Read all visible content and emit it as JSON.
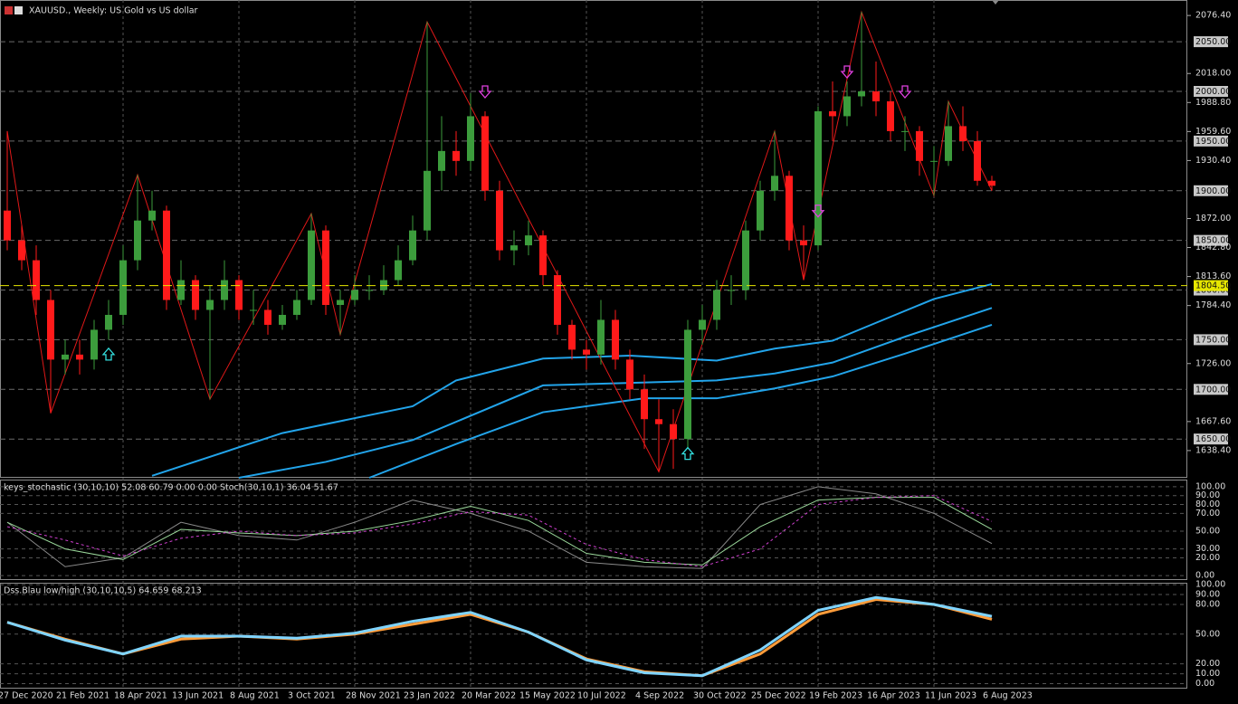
{
  "chart_data": [
    {
      "type": "candlestick",
      "title": "XAUUSD., Weekly:  US Gold vs US dollar",
      "categories": [
        "27 Dec 2020",
        null,
        null,
        null,
        "21 Feb 2021",
        null,
        null,
        null,
        "18 Apr 2021",
        null,
        null,
        null,
        "13 Jun 2021",
        null,
        null,
        null,
        "8 Aug 2021",
        null,
        null,
        null,
        "3 Oct 2021",
        null,
        null,
        null,
        "28 Nov 2021",
        null,
        null,
        null,
        "23 Jan 2022",
        null,
        null,
        null,
        "20 Mar 2022",
        null,
        null,
        null,
        "15 May 2022",
        null,
        null,
        null,
        "10 Jul 2022",
        null,
        null,
        null,
        "4 Sep 2022",
        null,
        null,
        null,
        "30 Oct 2022",
        null,
        null,
        null,
        "25 Dec 2022",
        null,
        null,
        null,
        "19 Feb 2023",
        null,
        null,
        null,
        "16 Apr 2023",
        null,
        null,
        null,
        "11 Jun 2023",
        null,
        null,
        null,
        "6 Aug 2023"
      ],
      "open": [
        1880,
        1850,
        1830,
        1790,
        1730,
        1735,
        1730,
        1760,
        1775,
        1830,
        1870,
        1880,
        1790,
        1810,
        1780,
        1790,
        1810,
        1780,
        1780,
        1765,
        1775,
        1790,
        1860,
        1785,
        1790,
        1800,
        1800,
        1810,
        1830,
        1860,
        1920,
        1940,
        1930,
        1975,
        1900,
        1840,
        1845,
        1855,
        1815,
        1765,
        1740,
        1735,
        1770,
        1730,
        1700,
        1670,
        1665,
        1650,
        1760,
        1770,
        1800,
        1800,
        1860,
        1900,
        1915,
        1850,
        1845,
        1980,
        1975,
        1995,
        2000,
        1990,
        1960,
        1960,
        1930,
        1930,
        1965,
        1950,
        1910
      ],
      "high": [
        1960,
        1865,
        1845,
        1800,
        1750,
        1750,
        1770,
        1790,
        1845,
        1916,
        1900,
        1885,
        1830,
        1815,
        1805,
        1830,
        1815,
        1800,
        1790,
        1785,
        1800,
        1877,
        1865,
        1800,
        1815,
        1815,
        1825,
        1845,
        1875,
        2070,
        1975,
        1960,
        1998,
        1980,
        1910,
        1860,
        1870,
        1860,
        1820,
        1770,
        1750,
        1790,
        1780,
        1740,
        1715,
        1690,
        1680,
        1770,
        1785,
        1810,
        1815,
        1870,
        1910,
        1960,
        1920,
        1865,
        1985,
        2010,
        2010,
        2080,
        2030,
        2000,
        1975,
        1965,
        1945,
        1990,
        1985,
        1960,
        1915
      ],
      "low": [
        1840,
        1820,
        1775,
        1676,
        1715,
        1715,
        1720,
        1750,
        1765,
        1820,
        1860,
        1780,
        1785,
        1770,
        1690,
        1780,
        1770,
        1765,
        1755,
        1760,
        1770,
        1785,
        1775,
        1755,
        1785,
        1790,
        1795,
        1805,
        1825,
        1850,
        1900,
        1915,
        1920,
        1890,
        1830,
        1825,
        1835,
        1805,
        1755,
        1730,
        1720,
        1725,
        1720,
        1690,
        1640,
        1617,
        1620,
        1640,
        1745,
        1760,
        1785,
        1790,
        1850,
        1890,
        1840,
        1810,
        1840,
        1950,
        1965,
        1985,
        1975,
        1950,
        1940,
        1915,
        1895,
        1925,
        1940,
        1905,
        1900
      ],
      "close": [
        1850,
        1830,
        1790,
        1730,
        1735,
        1730,
        1760,
        1775,
        1830,
        1870,
        1880,
        1790,
        1810,
        1780,
        1790,
        1810,
        1780,
        1780,
        1765,
        1775,
        1790,
        1860,
        1785,
        1790,
        1800,
        1800,
        1810,
        1830,
        1860,
        1920,
        1940,
        1930,
        1975,
        1900,
        1840,
        1845,
        1855,
        1815,
        1765,
        1740,
        1735,
        1770,
        1730,
        1700,
        1670,
        1665,
        1650,
        1760,
        1770,
        1800,
        1800,
        1860,
        1900,
        1915,
        1850,
        1845,
        1980,
        1975,
        1995,
        2000,
        1990,
        1960,
        1960,
        1930,
        1930,
        1965,
        1950,
        1910,
        1905
      ],
      "up_color": "#3c9c3c",
      "down_color": "#ff1a1a",
      "ylim": [
        1611,
        2092
      ],
      "yticks": [
        {
          "value": 2076.4,
          "label": "2076.40"
        },
        {
          "value": 2018,
          "label": "2018.00"
        },
        {
          "value": 1988.8,
          "label": "1988.80"
        },
        {
          "value": 1959.6,
          "label": "1959.60"
        },
        {
          "value": 1930.4,
          "label": "1930.40"
        },
        {
          "value": 1872,
          "label": "1872.00"
        },
        {
          "value": 1842.8,
          "label": "1842.80"
        },
        {
          "value": 1813.6,
          "label": "1813.60"
        },
        {
          "value": 1784.4,
          "label": "1784.40"
        },
        {
          "value": 1726,
          "label": "1726.00"
        },
        {
          "value": 1667.6,
          "label": "1667.60"
        },
        {
          "value": 1638.4,
          "label": "1638.40"
        }
      ],
      "levels": [
        {
          "value": 2050,
          "label": "2050.00"
        },
        {
          "value": 2000,
          "label": "2000.00"
        },
        {
          "value": 1950,
          "label": "1950.00"
        },
        {
          "value": 1900,
          "label": "1900.00"
        },
        {
          "value": 1850,
          "label": "1850.00"
        },
        {
          "value": 1800,
          "label": "1800.00"
        },
        {
          "value": 1750,
          "label": "1750.00"
        },
        {
          "value": 1700,
          "label": "1700.00"
        },
        {
          "value": 1650,
          "label": "1650.00"
        }
      ],
      "price_line": {
        "value": 1804.5,
        "label": "1804.50",
        "color": "#e6e600"
      },
      "series": [
        {
          "color": "#22a4ea",
          "x": [
            10,
            19,
            28,
            31,
            37,
            43,
            49,
            53,
            57,
            60,
            64,
            68
          ],
          "values": [
            1613,
            1656,
            1683,
            1709,
            1731,
            1734,
            1729,
            1741,
            1749,
            1767,
            1791,
            1806
          ]
        },
        {
          "color": "#22a4ea",
          "x": [
            16,
            22,
            28,
            37,
            49,
            53,
            57,
            62,
            68
          ],
          "values": [
            1611,
            1627,
            1649,
            1704,
            1709,
            1716,
            1727,
            1753,
            1782
          ]
        },
        {
          "color": "#22a4ea",
          "x": [
            25,
            31,
            37,
            44,
            49,
            53,
            57,
            62,
            68
          ],
          "values": [
            1611,
            1645,
            1677,
            1691,
            1691,
            1701,
            1713,
            1736,
            1765
          ]
        },
        {
          "color": "#e01818",
          "x": [
            0,
            3,
            9,
            14,
            21,
            23,
            29,
            45,
            53,
            55,
            59,
            64,
            65,
            68
          ],
          "values": [
            1960,
            1676,
            1916,
            1690,
            1877,
            1755,
            2070,
            1617,
            1960,
            1810,
            2080,
            1895,
            1990,
            1900
          ]
        }
      ],
      "up_arrows": {
        "color": "#33e0e0",
        "x": [
          7,
          47
        ],
        "values": [
          1735,
          1635
        ]
      },
      "down_arrows": {
        "color": "#e040e0",
        "x": [
          33,
          56,
          58,
          62
        ],
        "values": [
          2000,
          1880,
          2020,
          2000
        ]
      }
    },
    {
      "type": "line",
      "title": "keys_stochastic (30,10,10) 52.08 60.79 0.00 0.00 Stoch(30,10,1) 36.04 51.67",
      "ylim": [
        -5,
        107
      ],
      "yticks": [
        {
          "value": 100,
          "label": "100.00"
        },
        {
          "value": 90,
          "label": "90.00"
        },
        {
          "value": 80,
          "label": "80.00"
        },
        {
          "value": 70,
          "label": "70.00"
        },
        {
          "value": 50,
          "label": "50.00"
        },
        {
          "value": 30,
          "label": "30.00"
        },
        {
          "value": 20,
          "label": "20.00"
        },
        {
          "value": 0,
          "label": "0.00"
        }
      ],
      "series": [
        {
          "color": "#8a8a8a",
          "dash": false,
          "x": [
            0,
            4,
            8,
            12,
            16,
            20,
            24,
            28,
            32,
            36,
            40,
            44,
            48,
            52,
            56,
            60,
            64,
            68
          ],
          "values": [
            60,
            10,
            20,
            60,
            45,
            40,
            60,
            85,
            70,
            50,
            15,
            10,
            8,
            80,
            100,
            92,
            70,
            36
          ]
        },
        {
          "color": "#9ad89a",
          "dash": false,
          "x": [
            0,
            4,
            8,
            12,
            16,
            20,
            24,
            28,
            32,
            36,
            40,
            44,
            48,
            52,
            56,
            60,
            64,
            68
          ],
          "values": [
            60,
            30,
            18,
            52,
            48,
            45,
            50,
            62,
            78,
            62,
            25,
            15,
            12,
            55,
            85,
            88,
            88,
            52
          ]
        },
        {
          "color": "#d040d0",
          "dash": true,
          "x": [
            0,
            4,
            8,
            12,
            16,
            20,
            24,
            28,
            32,
            36,
            40,
            44,
            48,
            52,
            56,
            60,
            64,
            68
          ],
          "values": [
            55,
            40,
            22,
            42,
            50,
            45,
            48,
            58,
            72,
            68,
            35,
            18,
            10,
            30,
            80,
            88,
            90,
            61
          ]
        }
      ]
    },
    {
      "type": "line",
      "title": "Dss.Blau low/high (30,10,10,5) 64.659 68.213",
      "ylim": [
        -5,
        101
      ],
      "yticks": [
        {
          "value": 100,
          "label": "100.00"
        },
        {
          "value": 90,
          "label": "90.00"
        },
        {
          "value": 80,
          "label": "80.00"
        },
        {
          "value": 50,
          "label": "50.00"
        },
        {
          "value": 20,
          "label": "20.00"
        },
        {
          "value": 10,
          "label": "10.00"
        },
        {
          "value": 0,
          "label": "0.00"
        }
      ],
      "series": [
        {
          "color": "#ff9c3a",
          "dash": false,
          "x": [
            0,
            4,
            8,
            12,
            16,
            20,
            24,
            28,
            32,
            36,
            40,
            44,
            48,
            52,
            56,
            60,
            64,
            68
          ],
          "values": [
            62,
            45,
            30,
            45,
            48,
            45,
            50,
            60,
            70,
            52,
            25,
            12,
            8,
            30,
            70,
            85,
            80,
            65
          ]
        },
        {
          "color": "#7fd4ff",
          "dash": false,
          "x": [
            0,
            4,
            8,
            12,
            16,
            20,
            24,
            28,
            32,
            36,
            40,
            44,
            48,
            52,
            56,
            60,
            64,
            68
          ],
          "values": [
            62,
            44,
            30,
            48,
            48,
            46,
            51,
            63,
            72,
            52,
            24,
            11,
            8,
            34,
            74,
            87,
            80,
            68
          ]
        }
      ]
    }
  ]
}
